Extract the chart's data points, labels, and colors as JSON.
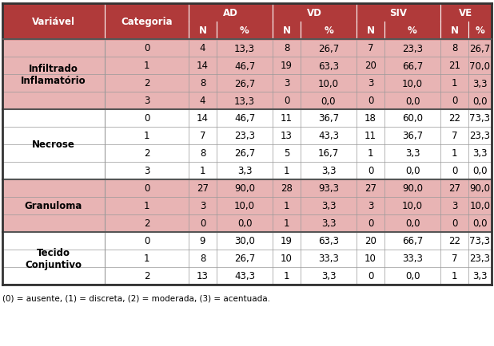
{
  "header_bg": "#b03a3a",
  "row_bg_pink": "#e8b4b4",
  "row_bg_white": "#ffffff",
  "footer_note": "(0) = ausente, (1) = discreta, (2) = moderada, (3) = acentuada.",
  "sections": [
    {
      "label": "Infiltrado\nInflamatório",
      "bg": "pink",
      "rows": [
        [
          0,
          4,
          "13,3",
          8,
          "26,7",
          7,
          "23,3",
          8,
          "26,7"
        ],
        [
          1,
          14,
          "46,7",
          19,
          "63,3",
          20,
          "66,7",
          21,
          "70,0"
        ],
        [
          2,
          8,
          "26,7",
          3,
          "10,0",
          3,
          "10,0",
          1,
          "3,3"
        ],
        [
          3,
          4,
          "13,3",
          0,
          "0,0",
          0,
          "0,0",
          0,
          "0,0"
        ]
      ]
    },
    {
      "label": "Necrose",
      "bg": "white",
      "rows": [
        [
          0,
          14,
          "46,7",
          11,
          "36,7",
          18,
          "60,0",
          22,
          "73,3"
        ],
        [
          1,
          7,
          "23,3",
          13,
          "43,3",
          11,
          "36,7",
          7,
          "23,3"
        ],
        [
          2,
          8,
          "26,7",
          5,
          "16,7",
          1,
          "3,3",
          1,
          "3,3"
        ],
        [
          3,
          1,
          "3,3",
          1,
          "3,3",
          0,
          "0,0",
          0,
          "0,0"
        ]
      ]
    },
    {
      "label": "Granuloma",
      "bg": "pink",
      "rows": [
        [
          0,
          27,
          "90,0",
          28,
          "93,3",
          27,
          "90,0",
          27,
          "90,0"
        ],
        [
          1,
          3,
          "10,0",
          1,
          "3,3",
          3,
          "10,0",
          3,
          "10,0"
        ],
        [
          2,
          0,
          "0,0",
          1,
          "3,3",
          0,
          "0,0",
          0,
          "0,0"
        ]
      ]
    },
    {
      "label": "Tecido\nConjuntivo",
      "bg": "white",
      "rows": [
        [
          0,
          9,
          "30,0",
          19,
          "63,3",
          20,
          "66,7",
          22,
          "73,3"
        ],
        [
          1,
          8,
          "26,7",
          10,
          "33,3",
          10,
          "33,3",
          7,
          "23,3"
        ],
        [
          2,
          13,
          "43,3",
          1,
          "3,3",
          0,
          "0,0",
          1,
          "3,3"
        ]
      ]
    }
  ],
  "col_labels": [
    "Variável",
    "Categoria",
    "N",
    "%",
    "N",
    "%",
    "N",
    "%",
    "N",
    "%"
  ],
  "group_labels": [
    "AD",
    "VD",
    "SIV",
    "VE"
  ],
  "line_color_thick": "#555555",
  "line_color_thin": "#999999",
  "sep_color": "#c87070"
}
